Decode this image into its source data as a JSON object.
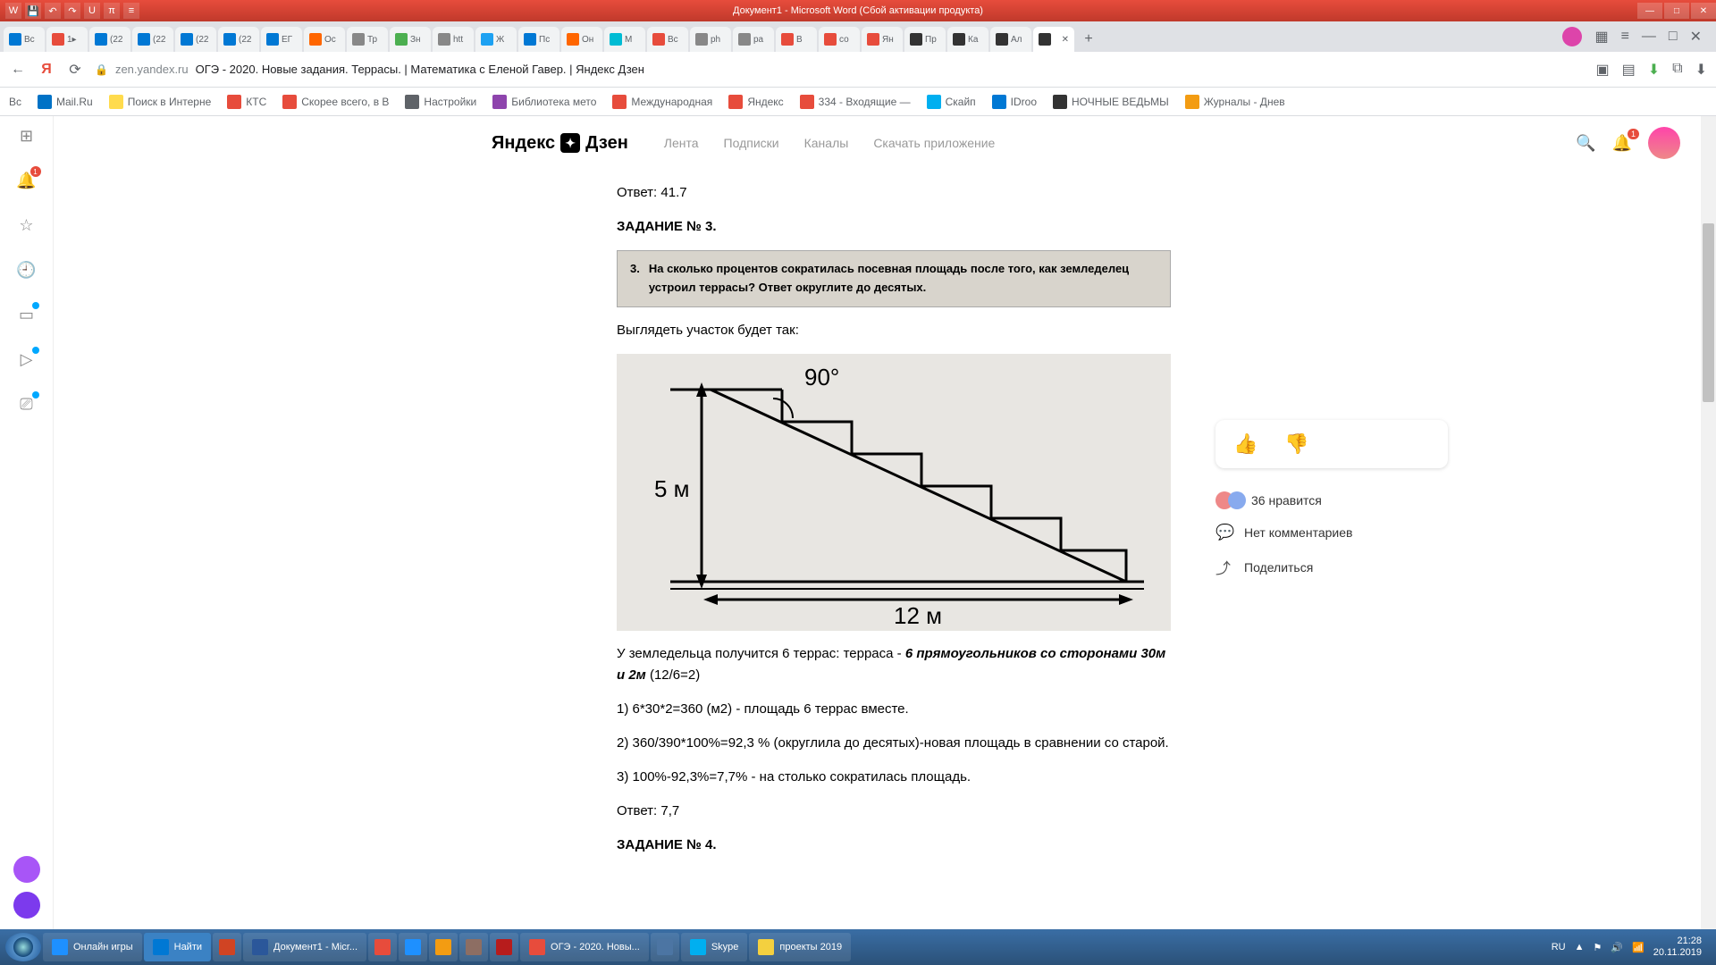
{
  "word": {
    "title": "Документ1 - Microsoft Word (Сбой активации продукта)",
    "qat": [
      "W",
      "💾",
      "↶",
      "↷",
      "U",
      "π",
      "≡"
    ]
  },
  "tabs": [
    {
      "fav": "#0078d4",
      "txt": "Вс"
    },
    {
      "fav": "#e74c3c",
      "txt": "1▸"
    },
    {
      "fav": "#0078d4",
      "txt": "(22"
    },
    {
      "fav": "#0078d4",
      "txt": "(22"
    },
    {
      "fav": "#0078d4",
      "txt": "(22"
    },
    {
      "fav": "#0078d4",
      "txt": "(22"
    },
    {
      "fav": "#0078d4",
      "txt": "ЕГ"
    },
    {
      "fav": "#ff6600",
      "txt": "Ос"
    },
    {
      "fav": "#888",
      "txt": "Тр"
    },
    {
      "fav": "#4caf50",
      "txt": "Зн"
    },
    {
      "fav": "#888",
      "txt": "htt"
    },
    {
      "fav": "#1da1f2",
      "txt": "Ж"
    },
    {
      "fav": "#0078d4",
      "txt": "Пс"
    },
    {
      "fav": "#ff6600",
      "txt": "Он"
    },
    {
      "fav": "#00bcd4",
      "txt": "М"
    },
    {
      "fav": "#e74c3c",
      "txt": "Вс"
    },
    {
      "fav": "#888",
      "txt": "ph"
    },
    {
      "fav": "#888",
      "txt": "ра"
    },
    {
      "fav": "#e74c3c",
      "txt": "В"
    },
    {
      "fav": "#e74c3c",
      "txt": "со"
    },
    {
      "fav": "#e74c3c",
      "txt": "Ян"
    },
    {
      "fav": "#333",
      "txt": "Пр"
    },
    {
      "fav": "#333",
      "txt": "Ка"
    },
    {
      "fav": "#333",
      "txt": "Ал"
    },
    {
      "fav": "#333",
      "txt": "",
      "active": true
    }
  ],
  "addr": {
    "domain": "zen.yandex.ru",
    "title": "ОГЭ - 2020. Новые задания. Террасы. | Математика с Еленой Гавер. | Яндекс Дзен"
  },
  "bookmarks": [
    {
      "ico": "#0072c6",
      "txt": "Mail.Ru"
    },
    {
      "ico": "#ffdb4d",
      "txt": "Поиск в Интерне"
    },
    {
      "ico": "#e74c3c",
      "txt": "КТС"
    },
    {
      "ico": "#e74c3c",
      "txt": "Скорее всего, в В"
    },
    {
      "ico": "#5f6368",
      "txt": "Настройки"
    },
    {
      "ico": "#8e44ad",
      "txt": "Библиотека мето"
    },
    {
      "ico": "#e74c3c",
      "txt": "Международная"
    },
    {
      "ico": "#e74c3c",
      "txt": "Яндекс"
    },
    {
      "ico": "#e74c3c",
      "txt": "334 - Входящие —"
    },
    {
      "ico": "#00aff0",
      "txt": "Скайп"
    },
    {
      "ico": "#0078d4",
      "txt": "IDroo"
    },
    {
      "ico": "#333",
      "txt": "НОЧНЫЕ ВЕДЬМЫ"
    },
    {
      "ico": "#f39c12",
      "txt": "Журналы - Днев"
    }
  ],
  "zen": {
    "brand1": "Яндекс",
    "brand2": "Дзен",
    "nav": [
      "Лента",
      "Подписки",
      "Каналы",
      "Скачать приложение"
    ],
    "bell_badge": "1"
  },
  "article": {
    "answer1": "Ответ: 41.7",
    "task3_title": "ЗАДАНИЕ № 3.",
    "task3_num": "3.",
    "task3_text": "На сколько процентов сократилась посевная площадь после того, как земледелец устроил террасы? Ответ округлите до десятых.",
    "look": "Выглядеть участок будет так:",
    "p1a": "У земледельца получится 6 террас: терраса - ",
    "p1b": "6 прямоугольников со сторонами 30м и 2м",
    "p1c": " (12/6=2)",
    "p2": "1) 6*30*2=360 (м2) - площадь 6 террас вместе.",
    "p3": "2) 360/390*100%=92,3 % (округлила до десятых)-новая площадь в сравнении со старой.",
    "p4": "3) 100%-92,3%=7,7% - на столько сократилась площадь.",
    "answer2": "Ответ: 7,7",
    "task4_title": "ЗАДАНИЕ № 4."
  },
  "diagram": {
    "angle": "90°",
    "height": "5 м",
    "width": "12 м",
    "bg": "#e8e6e2",
    "stroke": "#000",
    "stroke_width": 3
  },
  "aside": {
    "likes": "36 нравится",
    "comments": "Нет комментариев",
    "share": "Поделиться"
  },
  "taskbar": {
    "items": [
      {
        "ico": "#1e90ff",
        "txt": "Онлайн игры"
      },
      {
        "ico": "#0078d4",
        "txt": "Найти",
        "narrow": true
      },
      {
        "ico": "#d04423",
        "txt": ""
      },
      {
        "ico": "#2b579a",
        "txt": "Документ1 - Micr..."
      },
      {
        "ico": "#e74c3c",
        "txt": ""
      },
      {
        "ico": "#1e90ff",
        "txt": ""
      },
      {
        "ico": "#f39c12",
        "txt": ""
      },
      {
        "ico": "#8d6e63",
        "txt": ""
      },
      {
        "ico": "#b71c1c",
        "txt": ""
      },
      {
        "ico": "#e74c3c",
        "txt": "ОГЭ - 2020. Новы..."
      },
      {
        "ico": "#4c75a3",
        "txt": ""
      },
      {
        "ico": "#00aff0",
        "txt": "Skype"
      },
      {
        "ico": "#f4d03f",
        "txt": "проекты 2019"
      }
    ],
    "lang": "RU",
    "time": "21:28",
    "date": "20.11.2019"
  }
}
